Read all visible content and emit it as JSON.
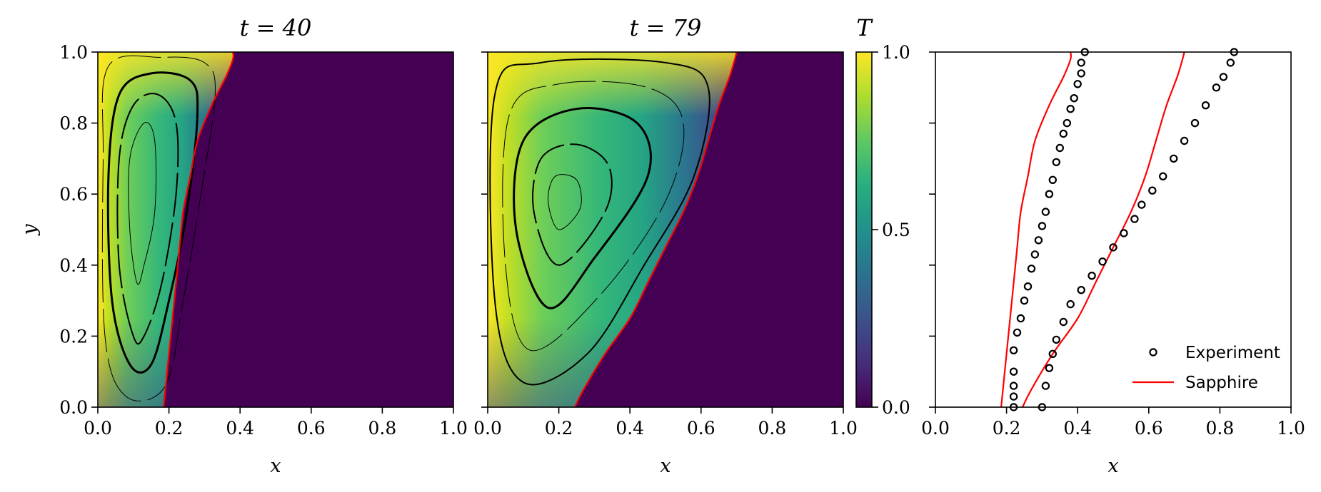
{
  "chart_data": [
    {
      "type": "heatmap",
      "title": "t = 40",
      "xlabel": "x",
      "ylabel": "y",
      "xlim": [
        0,
        1
      ],
      "ylim": [
        0,
        1
      ],
      "xticks": [
        "0.0",
        "0.2",
        "0.4",
        "0.6",
        "0.8",
        "1.0"
      ],
      "yticks": [
        "0.0",
        "0.2",
        "0.4",
        "0.6",
        "0.8",
        "1.0"
      ],
      "front_color": "#ff0000",
      "melt_front": [
        [
          0.185,
          0.0
        ],
        [
          0.19,
          0.05
        ],
        [
          0.2,
          0.15
        ],
        [
          0.21,
          0.25
        ],
        [
          0.22,
          0.35
        ],
        [
          0.23,
          0.45
        ],
        [
          0.24,
          0.55
        ],
        [
          0.26,
          0.65
        ],
        [
          0.28,
          0.75
        ],
        [
          0.32,
          0.85
        ],
        [
          0.36,
          0.93
        ],
        [
          0.38,
          0.98
        ],
        [
          0.38,
          1.0
        ]
      ],
      "streamlines": [
        [
          [
            0.11,
            0.35
          ],
          [
            0.09,
            0.5
          ],
          [
            0.09,
            0.7
          ],
          [
            0.13,
            0.8
          ],
          [
            0.16,
            0.75
          ],
          [
            0.16,
            0.55
          ],
          [
            0.13,
            0.4
          ],
          [
            0.11,
            0.35
          ]
        ],
        [
          [
            0.1,
            0.2
          ],
          [
            0.06,
            0.4
          ],
          [
            0.06,
            0.7
          ],
          [
            0.1,
            0.85
          ],
          [
            0.17,
            0.88
          ],
          [
            0.22,
            0.8
          ],
          [
            0.22,
            0.6
          ],
          [
            0.18,
            0.35
          ],
          [
            0.13,
            0.2
          ],
          [
            0.1,
            0.2
          ]
        ],
        [
          [
            0.09,
            0.12
          ],
          [
            0.04,
            0.3
          ],
          [
            0.03,
            0.65
          ],
          [
            0.06,
            0.88
          ],
          [
            0.15,
            0.94
          ],
          [
            0.26,
            0.92
          ],
          [
            0.28,
            0.82
          ],
          [
            0.25,
            0.55
          ],
          [
            0.2,
            0.3
          ],
          [
            0.15,
            0.12
          ],
          [
            0.09,
            0.12
          ]
        ],
        [
          [
            0.08,
            0.03
          ],
          [
            0.02,
            0.2
          ],
          [
            0.015,
            0.7
          ],
          [
            0.03,
            0.96
          ],
          [
            0.18,
            0.985
          ],
          [
            0.3,
            0.97
          ],
          [
            0.33,
            0.88
          ],
          [
            0.29,
            0.6
          ],
          [
            0.24,
            0.3
          ],
          [
            0.19,
            0.06
          ],
          [
            0.08,
            0.03
          ]
        ]
      ]
    },
    {
      "type": "heatmap",
      "title": "t = 79",
      "xlabel": "x",
      "xlim": [
        0,
        1
      ],
      "ylim": [
        0,
        1
      ],
      "xticks": [
        "0.0",
        "0.2",
        "0.4",
        "0.6",
        "0.8",
        "1.0"
      ],
      "front_color": "#ff0000",
      "melt_front": [
        [
          0.245,
          0.0
        ],
        [
          0.27,
          0.05
        ],
        [
          0.33,
          0.15
        ],
        [
          0.4,
          0.25
        ],
        [
          0.45,
          0.35
        ],
        [
          0.5,
          0.45
        ],
        [
          0.55,
          0.55
        ],
        [
          0.59,
          0.65
        ],
        [
          0.62,
          0.75
        ],
        [
          0.65,
          0.85
        ],
        [
          0.68,
          0.93
        ],
        [
          0.695,
          0.98
        ],
        [
          0.7,
          1.0
        ]
      ],
      "streamlines": [
        [
          [
            0.2,
            0.5
          ],
          [
            0.17,
            0.58
          ],
          [
            0.19,
            0.65
          ],
          [
            0.25,
            0.64
          ],
          [
            0.26,
            0.56
          ],
          [
            0.2,
            0.5
          ]
        ],
        [
          [
            0.2,
            0.4
          ],
          [
            0.13,
            0.55
          ],
          [
            0.15,
            0.7
          ],
          [
            0.25,
            0.74
          ],
          [
            0.34,
            0.68
          ],
          [
            0.33,
            0.55
          ],
          [
            0.2,
            0.4
          ]
        ],
        [
          [
            0.17,
            0.28
          ],
          [
            0.08,
            0.5
          ],
          [
            0.1,
            0.75
          ],
          [
            0.25,
            0.84
          ],
          [
            0.42,
            0.8
          ],
          [
            0.45,
            0.65
          ],
          [
            0.3,
            0.42
          ],
          [
            0.17,
            0.28
          ]
        ],
        [
          [
            0.12,
            0.16
          ],
          [
            0.05,
            0.4
          ],
          [
            0.06,
            0.82
          ],
          [
            0.2,
            0.91
          ],
          [
            0.45,
            0.9
          ],
          [
            0.55,
            0.8
          ],
          [
            0.5,
            0.58
          ],
          [
            0.32,
            0.32
          ],
          [
            0.12,
            0.16
          ]
        ],
        [
          [
            0.1,
            0.07
          ],
          [
            0.02,
            0.3
          ],
          [
            0.02,
            0.88
          ],
          [
            0.15,
            0.97
          ],
          [
            0.5,
            0.97
          ],
          [
            0.62,
            0.9
          ],
          [
            0.58,
            0.65
          ],
          [
            0.44,
            0.4
          ],
          [
            0.28,
            0.15
          ],
          [
            0.1,
            0.07
          ]
        ]
      ]
    },
    {
      "type": "scatter",
      "xlabel": "x",
      "xlim": [
        0,
        1
      ],
      "ylim": [
        0,
        1
      ],
      "xticks": [
        "0.0",
        "0.2",
        "0.4",
        "0.6",
        "0.8",
        "1.0"
      ],
      "legend_position": "bottom-right",
      "series": [
        {
          "name": "Experiment",
          "marker": "circle-open",
          "color": "#000000",
          "points": [
            [
              0.22,
              0.0
            ],
            [
              0.22,
              0.03
            ],
            [
              0.22,
              0.06
            ],
            [
              0.22,
              0.1
            ],
            [
              0.22,
              0.16
            ],
            [
              0.23,
              0.21
            ],
            [
              0.24,
              0.25
            ],
            [
              0.25,
              0.3
            ],
            [
              0.26,
              0.34
            ],
            [
              0.27,
              0.39
            ],
            [
              0.28,
              0.43
            ],
            [
              0.29,
              0.47
            ],
            [
              0.3,
              0.51
            ],
            [
              0.31,
              0.55
            ],
            [
              0.32,
              0.6
            ],
            [
              0.33,
              0.64
            ],
            [
              0.34,
              0.69
            ],
            [
              0.35,
              0.73
            ],
            [
              0.36,
              0.77
            ],
            [
              0.37,
              0.8
            ],
            [
              0.38,
              0.84
            ],
            [
              0.39,
              0.87
            ],
            [
              0.4,
              0.91
            ],
            [
              0.41,
              0.94
            ],
            [
              0.41,
              0.97
            ],
            [
              0.42,
              1.0
            ],
            [
              0.3,
              0.0
            ],
            [
              0.31,
              0.06
            ],
            [
              0.32,
              0.11
            ],
            [
              0.33,
              0.15
            ],
            [
              0.34,
              0.19
            ],
            [
              0.36,
              0.24
            ],
            [
              0.38,
              0.29
            ],
            [
              0.41,
              0.33
            ],
            [
              0.44,
              0.37
            ],
            [
              0.47,
              0.41
            ],
            [
              0.5,
              0.45
            ],
            [
              0.53,
              0.49
            ],
            [
              0.56,
              0.53
            ],
            [
              0.58,
              0.57
            ],
            [
              0.61,
              0.61
            ],
            [
              0.64,
              0.65
            ],
            [
              0.67,
              0.7
            ],
            [
              0.7,
              0.75
            ],
            [
              0.73,
              0.8
            ],
            [
              0.76,
              0.85
            ],
            [
              0.79,
              0.9
            ],
            [
              0.81,
              0.93
            ],
            [
              0.83,
              0.97
            ],
            [
              0.84,
              1.0
            ]
          ]
        },
        {
          "name": "Sapphire",
          "marker": "line",
          "color": "#ff0000",
          "lines": [
            [
              [
                0.185,
                0.0
              ],
              [
                0.19,
                0.05
              ],
              [
                0.2,
                0.15
              ],
              [
                0.21,
                0.25
              ],
              [
                0.22,
                0.35
              ],
              [
                0.23,
                0.45
              ],
              [
                0.24,
                0.55
              ],
              [
                0.26,
                0.65
              ],
              [
                0.28,
                0.75
              ],
              [
                0.32,
                0.85
              ],
              [
                0.36,
                0.93
              ],
              [
                0.38,
                0.98
              ],
              [
                0.38,
                1.0
              ]
            ],
            [
              [
                0.245,
                0.0
              ],
              [
                0.27,
                0.05
              ],
              [
                0.33,
                0.15
              ],
              [
                0.4,
                0.25
              ],
              [
                0.45,
                0.35
              ],
              [
                0.5,
                0.45
              ],
              [
                0.55,
                0.55
              ],
              [
                0.59,
                0.65
              ],
              [
                0.62,
                0.75
              ],
              [
                0.65,
                0.85
              ],
              [
                0.68,
                0.93
              ],
              [
                0.695,
                0.98
              ],
              [
                0.7,
                1.0
              ]
            ]
          ]
        }
      ]
    }
  ],
  "colorbar": {
    "title": "T",
    "range": [
      0,
      1
    ],
    "ticks": [
      "0.0",
      "0.5",
      "1.0"
    ],
    "colormap": "viridis"
  }
}
